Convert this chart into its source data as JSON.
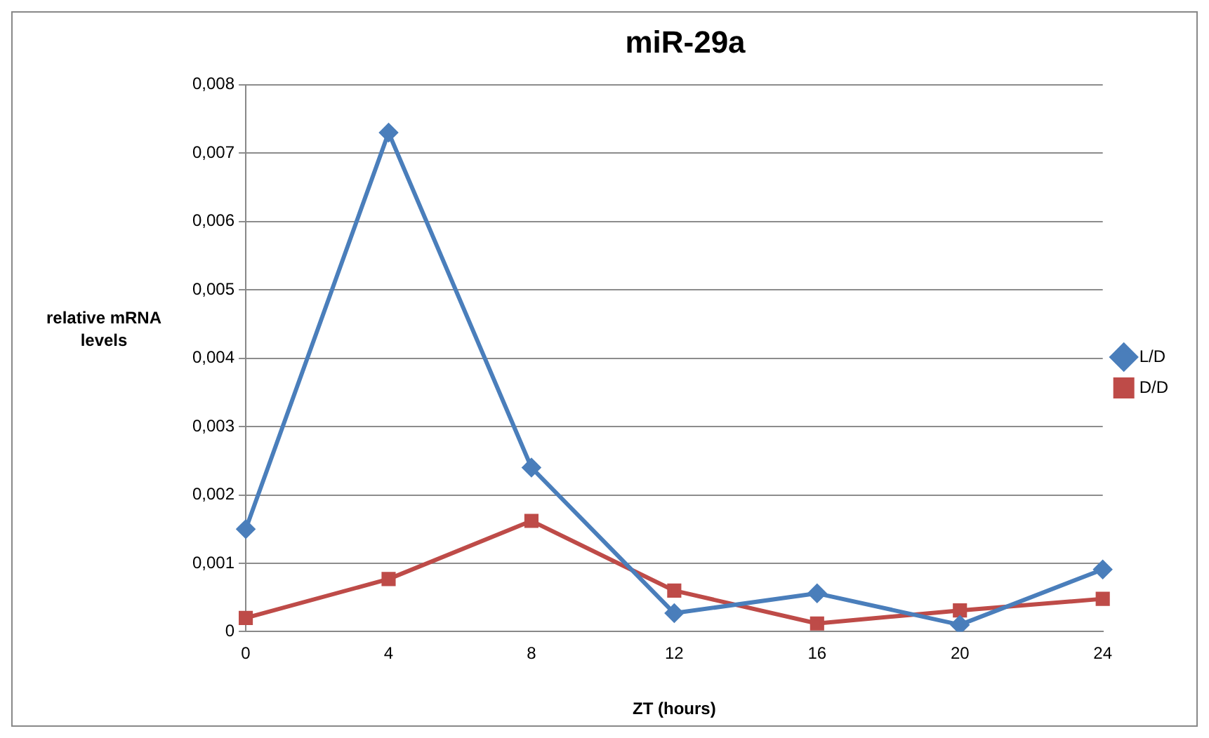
{
  "chart_data": {
    "type": "line",
    "title": "miR-29a",
    "xlabel": "ZT (hours)",
    "ylabel": "relative mRNA levels",
    "categories": [
      "0",
      "4",
      "8",
      "12",
      "16",
      "20",
      "24"
    ],
    "series": [
      {
        "name": "L/D",
        "color": "#4a7ebb",
        "marker": "diamond",
        "values": [
          0.0015,
          0.0073,
          0.0024,
          0.00027,
          0.00056,
          0.0001,
          0.00091
        ]
      },
      {
        "name": "D/D",
        "color": "#be4b48",
        "marker": "square",
        "values": [
          0.0002,
          0.00077,
          0.00162,
          0.0006,
          0.00012,
          0.00031,
          0.00048
        ]
      }
    ],
    "ylim": [
      0,
      0.008
    ],
    "yticks": [
      0,
      {
        "value": 0.001,
        "label": "0,001"
      },
      {
        "value": 0.002,
        "label": "0,002"
      },
      {
        "value": 0.003,
        "label": "0,003"
      },
      {
        "value": 0.004,
        "label": "0,004"
      },
      {
        "value": 0.005,
        "label": "0,005"
      },
      {
        "value": 0.006,
        "label": "0,006"
      },
      {
        "value": 0.007,
        "label": "0,007"
      },
      {
        "value": 0.008,
        "label": "0,008"
      }
    ],
    "grid": "y",
    "legend": "right",
    "line_style": "solid"
  }
}
